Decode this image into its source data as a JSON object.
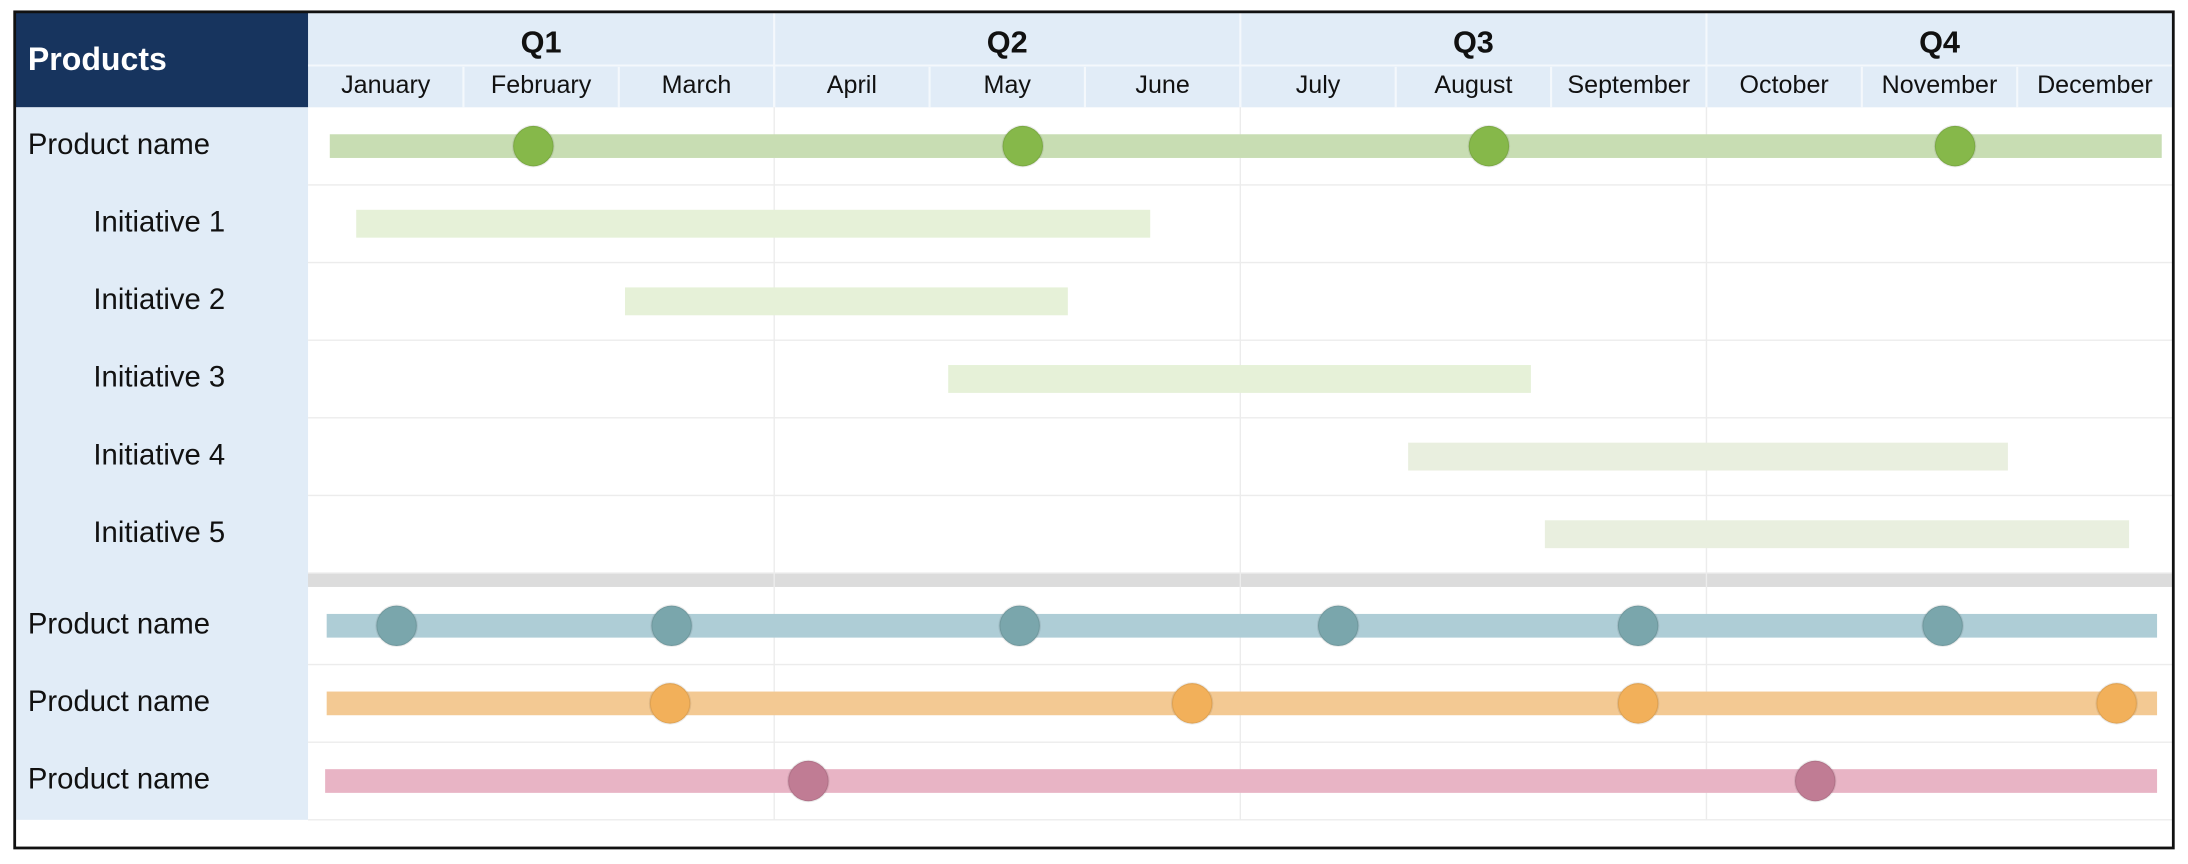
{
  "header": {
    "title": "Products",
    "quarters": [
      "Q1",
      "Q2",
      "Q3",
      "Q4"
    ],
    "months": [
      "January",
      "February",
      "March",
      "April",
      "May",
      "June",
      "July",
      "August",
      "September",
      "October",
      "November",
      "December"
    ]
  },
  "sections": [
    {
      "rows": [
        {
          "label": "Product name",
          "kind": "product",
          "color": "#c8ddb3",
          "milestone_color": "#86b84a",
          "bar": [
            0.14,
            11.93
          ],
          "milestones": [
            1.45,
            4.6,
            7.6,
            10.6
          ]
        },
        {
          "label": "Initiative 1",
          "kind": "initiative",
          "color": "#e6f1d8",
          "bar": [
            0.31,
            5.42
          ]
        },
        {
          "label": "Initiative 2",
          "kind": "initiative",
          "color": "#e6f1d8",
          "bar": [
            2.04,
            4.89
          ]
        },
        {
          "label": "Initiative 3",
          "kind": "initiative",
          "color": "#e6f1d8",
          "bar": [
            4.12,
            7.87
          ]
        },
        {
          "label": "Initiative 4",
          "kind": "initiative",
          "color": "#e9efdf",
          "bar": [
            7.08,
            10.94
          ]
        },
        {
          "label": "Initiative 5",
          "kind": "initiative",
          "color": "#e9efdf",
          "bar": [
            7.96,
            11.72
          ]
        }
      ]
    },
    {
      "rows": [
        {
          "label": "Product name",
          "kind": "product",
          "color": "#aecdd6",
          "milestone_color": "#7aa6ac",
          "bar": [
            0.12,
            11.9
          ],
          "milestones": [
            0.57,
            2.34,
            4.58,
            6.63,
            8.56,
            10.52
          ]
        },
        {
          "label": "Product name",
          "kind": "product",
          "color": "#f3c993",
          "milestone_color": "#f2b05a",
          "bar": [
            0.12,
            11.9
          ],
          "milestones": [
            2.33,
            5.69,
            8.56,
            11.64
          ]
        },
        {
          "label": "Product name",
          "kind": "product",
          "color": "#e8b4c5",
          "milestone_color": "#c07c94",
          "bar": [
            0.11,
            11.9
          ],
          "milestones": [
            3.22,
            9.7
          ]
        }
      ]
    }
  ]
}
